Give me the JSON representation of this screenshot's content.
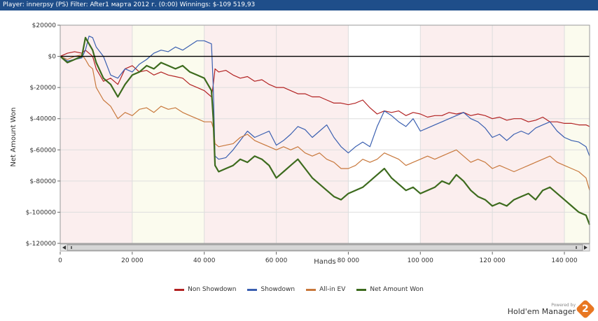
{
  "header": {
    "title": "Player: innerpsy (PS) Filter: After1 марта 2012 г. (0:00) Winnings: $-109 519,93"
  },
  "chart_data": {
    "type": "line",
    "xlabel": "Hands",
    "ylabel": "Net Amount Won",
    "xlim": [
      0,
      147000
    ],
    "ylim": [
      -120000,
      20000
    ],
    "x_ticks": [
      0,
      20000,
      40000,
      60000,
      80000,
      100000,
      120000,
      140000
    ],
    "x_tick_labels": [
      "0",
      "20 000",
      "40 000",
      "60 000",
      "80 000",
      "100 000",
      "120 000",
      "140 000"
    ],
    "y_ticks": [
      20000,
      0,
      -20000,
      -40000,
      -60000,
      -80000,
      -100000,
      -120000
    ],
    "y_tick_labels": [
      "$20000",
      "$0",
      "$-20000",
      "$-40000",
      "$-60000",
      "$-80000",
      "$-100000",
      "$-120000"
    ],
    "grid": true,
    "legend_position": "bottom",
    "x": [
      0,
      2000,
      4000,
      6000,
      7000,
      8000,
      9000,
      10000,
      12000,
      14000,
      16000,
      18000,
      20000,
      22000,
      24000,
      26000,
      28000,
      30000,
      32000,
      34000,
      36000,
      38000,
      40000,
      42000,
      42500,
      43000,
      44000,
      46000,
      48000,
      50000,
      52000,
      54000,
      56000,
      58000,
      60000,
      62000,
      64000,
      66000,
      68000,
      70000,
      72000,
      74000,
      76000,
      78000,
      80000,
      82000,
      84000,
      86000,
      88000,
      90000,
      92000,
      94000,
      96000,
      98000,
      100000,
      102000,
      104000,
      106000,
      108000,
      110000,
      112000,
      114000,
      116000,
      118000,
      120000,
      122000,
      124000,
      126000,
      128000,
      130000,
      132000,
      134000,
      136000,
      138000,
      140000,
      142000,
      144000,
      146000,
      147000
    ],
    "series": [
      {
        "name": "Non Showdown",
        "color": "#b22222",
        "values": [
          0,
          2000,
          3000,
          2000,
          4000,
          2000,
          0,
          -8000,
          -16000,
          -14000,
          -18000,
          -8000,
          -6000,
          -10000,
          -9000,
          -12000,
          -10000,
          -12000,
          -13000,
          -14000,
          -18000,
          -20000,
          -22000,
          -26000,
          -18000,
          -8000,
          -10000,
          -9000,
          -12000,
          -14000,
          -13000,
          -16000,
          -15000,
          -18000,
          -20000,
          -20000,
          -22000,
          -24000,
          -24000,
          -26000,
          -26000,
          -28000,
          -30000,
          -30000,
          -31000,
          -30000,
          -28000,
          -33000,
          -37000,
          -35000,
          -36000,
          -35000,
          -38000,
          -36000,
          -37000,
          -39000,
          -38000,
          -38000,
          -36000,
          -37000,
          -36000,
          -38000,
          -37000,
          -38000,
          -40000,
          -39000,
          -41000,
          -40000,
          -40000,
          -42000,
          -41000,
          -39000,
          -42000,
          -42000,
          -43000,
          -43000,
          -44000,
          -44000,
          -45000
        ]
      },
      {
        "name": "Showdown",
        "color": "#3a5fb0",
        "values": [
          0,
          -3000,
          -2000,
          -1000,
          4000,
          13000,
          12000,
          6000,
          0,
          -12000,
          -14000,
          -8000,
          -10000,
          -5000,
          -2000,
          2000,
          4000,
          3000,
          6000,
          4000,
          7000,
          10000,
          10000,
          8000,
          -20000,
          -64000,
          -66000,
          -65000,
          -60000,
          -54000,
          -48000,
          -52000,
          -50000,
          -48000,
          -57000,
          -54000,
          -50000,
          -45000,
          -47000,
          -52000,
          -48000,
          -44000,
          -52000,
          -58000,
          -62000,
          -58000,
          -55000,
          -58000,
          -45000,
          -35000,
          -38000,
          -42000,
          -45000,
          -40000,
          -48000,
          -46000,
          -44000,
          -42000,
          -40000,
          -38000,
          -36000,
          -40000,
          -42000,
          -46000,
          -52000,
          -50000,
          -54000,
          -50000,
          -48000,
          -50000,
          -46000,
          -44000,
          -42000,
          -48000,
          -52000,
          -54000,
          -55000,
          -58000,
          -64000
        ]
      },
      {
        "name": "All-in EV",
        "color": "#c8783c",
        "values": [
          0,
          -2000,
          0,
          1000,
          -2000,
          -6000,
          -8000,
          -20000,
          -28000,
          -32000,
          -40000,
          -36000,
          -38000,
          -34000,
          -33000,
          -36000,
          -32000,
          -34000,
          -33000,
          -36000,
          -38000,
          -40000,
          -42000,
          -42000,
          -46000,
          -56000,
          -58000,
          -57000,
          -56000,
          -52000,
          -50000,
          -54000,
          -56000,
          -58000,
          -60000,
          -58000,
          -60000,
          -58000,
          -62000,
          -64000,
          -62000,
          -66000,
          -68000,
          -72000,
          -72000,
          -70000,
          -66000,
          -68000,
          -66000,
          -62000,
          -64000,
          -66000,
          -70000,
          -68000,
          -66000,
          -64000,
          -66000,
          -64000,
          -62000,
          -60000,
          -64000,
          -68000,
          -66000,
          -68000,
          -72000,
          -70000,
          -72000,
          -74000,
          -72000,
          -70000,
          -68000,
          -66000,
          -64000,
          -68000,
          -70000,
          -72000,
          -74000,
          -78000,
          -86000
        ]
      },
      {
        "name": "Net Amount Won",
        "color": "#3d6b1e",
        "values": [
          0,
          -4000,
          -2000,
          0,
          12000,
          8000,
          4000,
          -4000,
          -14000,
          -18000,
          -26000,
          -18000,
          -12000,
          -10000,
          -6000,
          -8000,
          -4000,
          -6000,
          -8000,
          -6000,
          -10000,
          -12000,
          -14000,
          -22000,
          -40000,
          -70000,
          -74000,
          -72000,
          -70000,
          -66000,
          -68000,
          -64000,
          -66000,
          -70000,
          -78000,
          -74000,
          -70000,
          -66000,
          -72000,
          -78000,
          -82000,
          -86000,
          -90000,
          -92000,
          -88000,
          -86000,
          -84000,
          -80000,
          -76000,
          -72000,
          -78000,
          -82000,
          -86000,
          -84000,
          -88000,
          -86000,
          -84000,
          -80000,
          -82000,
          -76000,
          -80000,
          -86000,
          -90000,
          -92000,
          -96000,
          -94000,
          -96000,
          -92000,
          -90000,
          -88000,
          -92000,
          -86000,
          -84000,
          -88000,
          -92000,
          -96000,
          -100000,
          -102000,
          -108000
        ]
      }
    ]
  },
  "legend": {
    "items": [
      "Non Showdown",
      "Showdown",
      "All-in EV",
      "Net Amount Won"
    ],
    "colors": [
      "#b22222",
      "#3a5fb0",
      "#c8783c",
      "#3d6b1e"
    ]
  },
  "brand": {
    "powered_by": "Powered by",
    "name": "Hold'em Manager",
    "logo_text": "2"
  }
}
